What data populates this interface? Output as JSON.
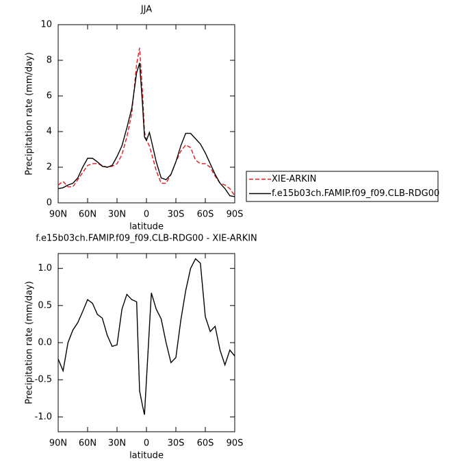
{
  "chart_data": [
    {
      "type": "line",
      "title": "JJA",
      "xlabel": "latitude",
      "ylabel": "Precipitation rate (mm/day)",
      "x": [
        90,
        85,
        80,
        75,
        70,
        65,
        60,
        55,
        50,
        45,
        40,
        35,
        30,
        25,
        20,
        15,
        10,
        7,
        4,
        2,
        0,
        -3,
        -5,
        -10,
        -15,
        -20,
        -25,
        -30,
        -35,
        -40,
        -45,
        -50,
        -55,
        -60,
        -65,
        -70,
        -75,
        -80,
        -85,
        -90
      ],
      "xlim": [
        90,
        -90
      ],
      "xticks": [
        {
          "value": 90,
          "label": "90N"
        },
        {
          "value": 60,
          "label": "60N"
        },
        {
          "value": 30,
          "label": "30N"
        },
        0,
        {
          "value": -30,
          "label": "30S"
        },
        {
          "value": -60,
          "label": "60S"
        },
        {
          "value": -90,
          "label": "90S"
        }
      ],
      "ylim": [
        0,
        10
      ],
      "yticks": [
        0,
        2,
        4,
        6,
        8,
        10
      ],
      "legend": "right",
      "series": [
        {
          "name": "XIE-ARKIN",
          "color": "#e8141a",
          "line_style": "dashed",
          "values": [
            1.0,
            1.2,
            0.9,
            0.9,
            1.3,
            1.7,
            2.1,
            2.2,
            2.2,
            2.1,
            2.0,
            2.05,
            2.2,
            2.7,
            3.7,
            5.0,
            7.8,
            8.7,
            6.2,
            4.0,
            3.5,
            3.2,
            2.8,
            1.8,
            1.1,
            1.1,
            1.6,
            2.3,
            2.9,
            3.25,
            3.1,
            2.4,
            2.2,
            2.2,
            2.0,
            1.5,
            1.1,
            1.0,
            0.8,
            0.4
          ]
        },
        {
          "name": "f.e15b03ch.FAMIP.f09_f09.CLB-RDG00",
          "color": "#000000",
          "line_style": "solid",
          "values": [
            0.8,
            0.85,
            1.0,
            1.1,
            1.4,
            2.0,
            2.5,
            2.5,
            2.3,
            2.05,
            2.0,
            2.1,
            2.6,
            3.2,
            4.2,
            5.3,
            7.3,
            7.85,
            5.5,
            3.7,
            3.5,
            3.95,
            3.5,
            2.3,
            1.4,
            1.3,
            1.6,
            2.3,
            3.2,
            3.9,
            3.9,
            3.6,
            3.3,
            2.8,
            2.2,
            1.6,
            1.1,
            0.8,
            0.4,
            0.35
          ]
        }
      ]
    },
    {
      "type": "line",
      "title": "f.e15b03ch.FAMIP.f09_f09.CLB-RDG00 - XIE-ARKIN",
      "xlabel": "latitude",
      "ylabel": "Precipitation rate (mm/day)",
      "x": [
        90,
        85,
        80,
        75,
        70,
        65,
        60,
        55,
        50,
        45,
        40,
        35,
        30,
        25,
        20,
        15,
        10,
        7,
        4,
        2,
        0,
        -3,
        -5,
        -10,
        -15,
        -20,
        -25,
        -30,
        -35,
        -40,
        -45,
        -50,
        -55,
        -60,
        -65,
        -70,
        -75,
        -80,
        -85,
        -90
      ],
      "xlim": [
        90,
        -90
      ],
      "xticks": [
        {
          "value": 90,
          "label": "90N"
        },
        {
          "value": 60,
          "label": "60N"
        },
        {
          "value": 30,
          "label": "30N"
        },
        0,
        {
          "value": -30,
          "label": "30S"
        },
        {
          "value": -60,
          "label": "60S"
        },
        {
          "value": -90,
          "label": "90S"
        }
      ],
      "ylim": [
        -1.2,
        1.2
      ],
      "yticks": [
        {
          "value": -1,
          "label": "-1.0"
        },
        {
          "value": -0.5,
          "label": "-0.5"
        },
        {
          "value": 0,
          "label": "0.0"
        },
        0.5,
        {
          "value": 1,
          "label": "1.0"
        }
      ],
      "series": [
        {
          "color": "#000000",
          "line_style": "solid",
          "values": [
            -0.22,
            -0.38,
            0.0,
            0.17,
            0.27,
            0.42,
            0.58,
            0.53,
            0.38,
            0.33,
            0.1,
            -0.05,
            -0.03,
            0.45,
            0.65,
            0.58,
            0.55,
            -0.65,
            -0.85,
            -0.97,
            -0.5,
            0.2,
            0.67,
            0.45,
            0.32,
            0.0,
            -0.27,
            -0.2,
            0.3,
            0.7,
            1.0,
            1.13,
            1.07,
            0.35,
            0.15,
            0.22,
            -0.1,
            -0.3,
            -0.1,
            -0.18
          ]
        }
      ]
    }
  ]
}
